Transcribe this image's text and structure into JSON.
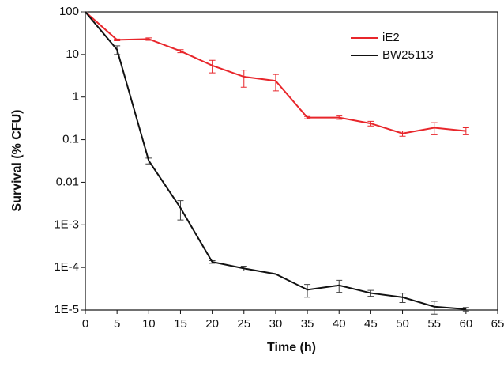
{
  "chart_data": {
    "type": "line",
    "x_label": "Time (h)",
    "y_label": "Survival (% CFU)",
    "log_y": true,
    "xlim": [
      0,
      65
    ],
    "xticks": [
      0,
      5,
      10,
      15,
      20,
      25,
      30,
      35,
      40,
      45,
      50,
      55,
      60,
      65
    ],
    "ylim": [
      1e-05,
      100
    ],
    "yticks": [
      {
        "value": 1e-05,
        "label": "1E-5"
      },
      {
        "value": 0.0001,
        "label": "1E-4"
      },
      {
        "value": 0.001,
        "label": "1E-3"
      },
      0.01,
      0.1,
      1,
      10,
      100
    ],
    "legend": "upper right",
    "x": [
      0,
      5,
      10,
      15,
      20,
      25,
      30,
      35,
      40,
      45,
      50,
      55,
      60
    ],
    "series": [
      {
        "name": "iE2",
        "color": "#e8262b",
        "values": [
          100,
          22,
          23,
          12,
          5.5,
          3,
          2.4,
          0.33,
          0.33,
          0.24,
          0.14,
          0.19,
          0.16
        ],
        "errors": [
          0,
          1,
          1.5,
          1,
          1.8,
          1.3,
          1.0,
          0.02,
          0.03,
          0.03,
          0.02,
          0.06,
          0.03
        ]
      },
      {
        "name": "BW25113",
        "color": "#111111",
        "values": [
          100,
          13,
          0.032,
          0.0025,
          0.000135,
          9.5e-05,
          7e-05,
          3e-05,
          3.8e-05,
          2.5e-05,
          2e-05,
          1.2e-05,
          1.05e-05
        ],
        "errors": [
          0,
          3,
          0.005,
          0.0012,
          1e-05,
          1.2e-05,
          0,
          1e-05,
          1.2e-05,
          4e-06,
          5e-06,
          4e-06,
          1e-06
        ]
      }
    ]
  }
}
